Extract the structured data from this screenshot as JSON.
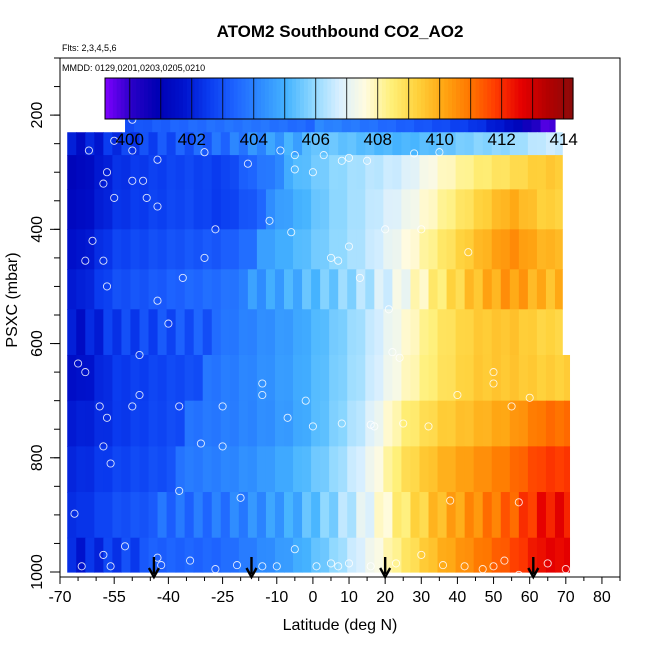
{
  "chart_data": {
    "type": "heatmap",
    "title": "ATOM2 Southbound CO2_AO2",
    "subtitle_flights": "Flts: 2,3,4,5,6",
    "subtitle_dates": "MMDD: 0129,0201,0203,0205,0210",
    "xlabel": "Latitude (deg N)",
    "ylabel": "PSXC (mbar)",
    "xlim": [
      -70,
      85
    ],
    "ylim": [
      1000,
      100
    ],
    "x_ticks": [
      -70,
      -55,
      -40,
      -25,
      -10,
      0,
      10,
      20,
      30,
      40,
      50,
      60,
      70,
      80
    ],
    "y_ticks": [
      200,
      400,
      600,
      800,
      1000
    ],
    "colorbar": {
      "min": 399.2,
      "max": 414.3,
      "ticks": [
        400,
        402,
        404,
        406,
        408,
        410,
        412,
        414
      ],
      "colors": [
        "#7f00ff",
        "#2a00c8",
        "#0000b4",
        "#0012cc",
        "#0a3cf0",
        "#1e64ff",
        "#2e8cff",
        "#46b4ff",
        "#8ed8ff",
        "#d8efff",
        "#fffbe0",
        "#fff07a",
        "#ffd23c",
        "#ffa814",
        "#ff7800",
        "#ff3c00",
        "#e60000",
        "#b40000",
        "#8c0a0a"
      ]
    },
    "arrows_lat": [
      -44,
      -17,
      20,
      61
    ],
    "field": {
      "lat_edges": [
        -68,
        -60,
        -50,
        -40,
        -30,
        -20,
        -10,
        0,
        10,
        20,
        30,
        40,
        50,
        60,
        68
      ],
      "pressure_levels": [
        190,
        230,
        270,
        330,
        400,
        470,
        540,
        620,
        700,
        780,
        860,
        940,
        1000
      ],
      "co2_rows": [
        [
          null,
          403.6,
          404.0,
          404.3,
          404.5,
          404.6,
          404.4,
          404.1,
          403.8,
          403.4,
          403.0,
          402.5,
          401.5,
          399.8
        ],
        [
          402.3,
          403.0,
          403.4,
          403.8,
          404.2,
          404.9,
          405.5,
          405.7,
          405.5,
          405.3,
          405.6,
          406.0,
          406.2,
          406.8
        ],
        [
          402.0,
          403.1,
          403.4,
          403.6,
          403.4,
          404.5,
          405.2,
          405.9,
          406.4,
          406.8,
          407.8,
          408.5,
          409.0,
          409.5
        ],
        [
          402.0,
          403.0,
          403.3,
          403.5,
          403.2,
          404.0,
          404.8,
          405.7,
          406.3,
          407.0,
          408.0,
          409.0,
          410.0,
          409.2
        ],
        [
          402.2,
          403.2,
          403.4,
          403.6,
          403.7,
          404.3,
          404.9,
          405.6,
          406.2,
          407.2,
          408.3,
          409.4,
          410.4,
          409.6
        ],
        [
          402.3,
          403.3,
          403.5,
          403.8,
          404.0,
          404.5,
          405.0,
          405.6,
          406.3,
          407.3,
          408.6,
          409.7,
          410.4,
          409.8
        ],
        [
          402.3,
          403.2,
          403.4,
          403.7,
          403.9,
          404.4,
          404.9,
          405.7,
          406.6,
          407.8,
          408.9,
          409.6,
          409.8,
          409.4
        ],
        [
          402.4,
          403.3,
          403.5,
          403.7,
          403.9,
          404.3,
          404.8,
          405.6,
          406.5,
          407.8,
          408.8,
          409.5,
          409.6,
          409.4
        ],
        [
          402.6,
          403.1,
          403.4,
          403.6,
          403.8,
          404.1,
          404.6,
          405.5,
          406.6,
          408.3,
          409.2,
          409.7,
          410.2,
          411.0
        ],
        [
          402.7,
          403.2,
          403.4,
          403.6,
          403.8,
          404.2,
          404.8,
          405.6,
          406.8,
          408.6,
          409.6,
          410.2,
          410.8,
          411.6
        ],
        [
          402.7,
          403.3,
          403.5,
          403.6,
          403.8,
          404.3,
          404.9,
          405.8,
          407.0,
          408.6,
          409.8,
          410.6,
          411.3,
          412.4
        ],
        [
          402.6,
          403.2,
          403.5,
          403.6,
          403.7,
          404.3,
          405.0,
          406.0,
          407.3,
          408.8,
          410.1,
          411.0,
          411.8,
          412.8
        ]
      ]
    },
    "sample_points": [
      [
        -55,
        245
      ],
      [
        -62,
        262
      ],
      [
        -50,
        262
      ],
      [
        -43,
        278
      ],
      [
        -30,
        265
      ],
      [
        -18,
        285
      ],
      [
        -9,
        262
      ],
      [
        -5,
        270
      ],
      [
        3,
        270
      ],
      [
        8,
        280
      ],
      [
        15,
        280
      ],
      [
        28,
        267
      ],
      [
        35,
        265
      ],
      [
        -66,
        210
      ],
      [
        -56,
        208
      ],
      [
        -50,
        208
      ],
      [
        -22,
        200
      ],
      [
        -20,
        200
      ],
      [
        63,
        200
      ],
      [
        66,
        200
      ],
      [
        -57,
        300
      ],
      [
        -50,
        315
      ],
      [
        -47,
        315
      ],
      [
        -5,
        295
      ],
      [
        0,
        300
      ],
      [
        10,
        275
      ],
      [
        -58,
        320
      ],
      [
        -55,
        345
      ],
      [
        -46,
        345
      ],
      [
        -43,
        360
      ],
      [
        -12,
        385
      ],
      [
        -27,
        400
      ],
      [
        -6,
        405
      ],
      [
        20,
        400
      ],
      [
        30,
        400
      ],
      [
        -61,
        420
      ],
      [
        -63,
        455
      ],
      [
        -58,
        455
      ],
      [
        10,
        430
      ],
      [
        5,
        450
      ],
      [
        7,
        455
      ],
      [
        13,
        485
      ],
      [
        -30,
        450
      ],
      [
        -57,
        500
      ],
      [
        -36,
        485
      ],
      [
        -43,
        525
      ],
      [
        -40,
        565
      ],
      [
        21,
        540
      ],
      [
        43,
        440
      ],
      [
        -48,
        620
      ],
      [
        -65,
        635
      ],
      [
        -63,
        650
      ],
      [
        22,
        615
      ],
      [
        24,
        625
      ],
      [
        -14,
        670
      ],
      [
        -14,
        690
      ],
      [
        -48,
        690
      ],
      [
        50,
        650
      ],
      [
        -59,
        710
      ],
      [
        -50,
        710
      ],
      [
        -57,
        730
      ],
      [
        -37,
        710
      ],
      [
        -25,
        710
      ],
      [
        -2,
        700
      ],
      [
        8,
        740
      ],
      [
        -7,
        730
      ],
      [
        0,
        745
      ],
      [
        16,
        742
      ],
      [
        17,
        745
      ],
      [
        25,
        740
      ],
      [
        32,
        745
      ],
      [
        40,
        690
      ],
      [
        50,
        670
      ],
      [
        55,
        710
      ],
      [
        60,
        695
      ],
      [
        -58,
        780
      ],
      [
        -56,
        810
      ],
      [
        -31,
        775
      ],
      [
        -25,
        780
      ],
      [
        -37,
        858
      ],
      [
        -20,
        870
      ],
      [
        38,
        875
      ],
      [
        57,
        878
      ],
      [
        -66,
        898
      ],
      [
        -52,
        955
      ],
      [
        -58,
        970
      ],
      [
        -56,
        990
      ],
      [
        -34,
        980
      ],
      [
        -21,
        988
      ],
      [
        -10,
        990
      ],
      [
        -5,
        960
      ],
      [
        7,
        990
      ],
      [
        16,
        990
      ],
      [
        23,
        985
      ],
      [
        30,
        970
      ],
      [
        36,
        988
      ],
      [
        42,
        990
      ],
      [
        47,
        995
      ],
      [
        53,
        980
      ],
      [
        57,
        1005
      ],
      [
        65,
        985
      ],
      [
        70,
        995
      ],
      [
        -64,
        990
      ],
      [
        -42,
        988
      ],
      [
        5,
        985
      ],
      [
        50,
        990
      ],
      [
        1,
        990
      ],
      [
        10,
        985
      ],
      [
        -14,
        990
      ],
      [
        -27,
        995
      ],
      [
        -43,
        975
      ]
    ]
  }
}
